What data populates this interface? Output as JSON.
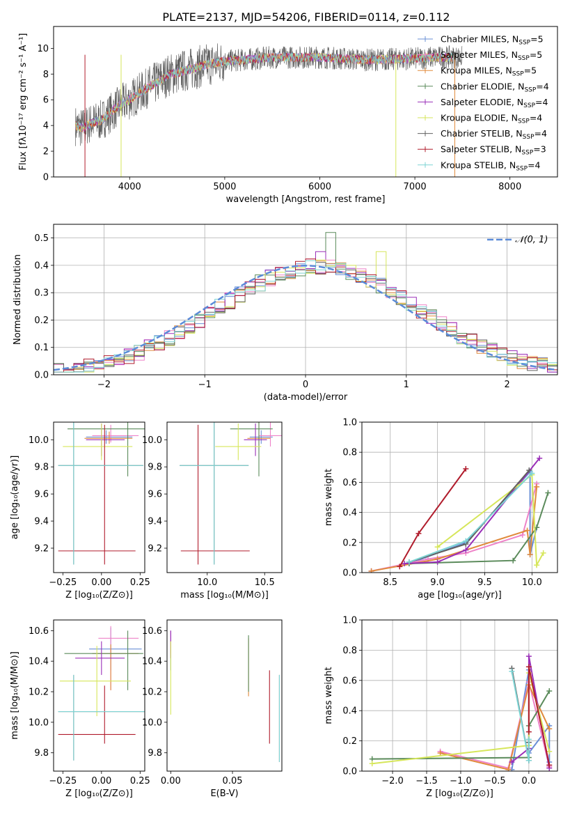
{
  "figure_title": "PLATE=2137, MJD=54206, FIBERID=0114, z=0.112",
  "colors": {
    "Chabrier MILES": "#6a8fd6",
    "Salpeter MILES": "#ee82c8",
    "Kroupa MILES": "#e08a3c",
    "Chabrier ELODIE": "#5a8a5a",
    "Salpeter ELODIE": "#9a2fb8",
    "Kroupa ELODIE": "#d6e65a",
    "Chabrier STELIB": "#606060",
    "Salpeter STELIB": "#b01c2c",
    "Kroupa STELIB": "#7dd4d4",
    "normal": "#5b8bd8"
  },
  "chart_data": [
    {
      "id": "spectrum",
      "type": "line",
      "title": "PLATE=2137, MJD=54206, FIBERID=0114, z=0.112",
      "xlabel": "wavelength [Angstrom, rest frame]",
      "ylabel": "Flux [fλ10⁻¹⁷ erg cm⁻² s⁻¹ A⁻¹]",
      "xlim": [
        3200,
        8500
      ],
      "ylim": [
        0,
        11.7
      ],
      "xticks": [
        4000,
        5000,
        6000,
        7000,
        8000
      ],
      "yticks": [
        0,
        2,
        4,
        6,
        8,
        10
      ],
      "legend": "upper right",
      "legend_entries": [
        {
          "name": "Chabrier MILES",
          "nssp": "5"
        },
        {
          "name": "Salpeter MILES",
          "nssp": "5"
        },
        {
          "name": "Kroupa MILES",
          "nssp": "5"
        },
        {
          "name": "Chabrier ELODIE",
          "nssp": "4"
        },
        {
          "name": "Salpeter ELODIE",
          "nssp": "4"
        },
        {
          "name": "Kroupa ELODIE",
          "nssp": "4"
        },
        {
          "name": "Chabrier STELIB",
          "nssp": "4"
        },
        {
          "name": "Salpeter STELIB",
          "nssp": "3"
        },
        {
          "name": "Kroupa STELIB",
          "nssp": "4"
        }
      ],
      "continuum_x": [
        3430,
        3500,
        3600,
        3700,
        3800,
        3900,
        4000,
        4100,
        4200,
        4300,
        4400,
        4500,
        4600,
        4800,
        5000,
        5200,
        5500,
        6000,
        6500,
        7000,
        7200,
        7500
      ],
      "continuum_y": [
        4.0,
        3.8,
        4.2,
        4.4,
        5.0,
        5.6,
        6.0,
        6.5,
        7.0,
        7.4,
        7.9,
        8.1,
        8.3,
        8.7,
        9.0,
        9.1,
        9.3,
        9.3,
        9.1,
        9.2,
        9.3,
        9.3
      ]
    },
    {
      "id": "residuals",
      "type": "histogram",
      "xlabel": "(data-model)/error",
      "ylabel": "Normed distribution",
      "xlim": [
        -2.5,
        2.5
      ],
      "ylim": [
        0,
        0.55
      ],
      "xticks": [
        -2,
        -1,
        0,
        1,
        2
      ],
      "yticks": [
        0.0,
        0.1,
        0.2,
        0.3,
        0.4,
        0.5
      ],
      "grid": true,
      "legend": "upper right",
      "normal_label": "𝒩(0, 1)",
      "bin_width": 0.1,
      "highlight_bins": [
        {
          "series": "Chabrier ELODIE",
          "x": 0.25,
          "y": 0.52
        },
        {
          "series": "Kroupa ELODIE",
          "x": 0.75,
          "y": 0.45
        },
        {
          "series": "Salpeter ELODIE",
          "x": 0.15,
          "y": 0.45
        }
      ]
    },
    {
      "id": "age_vs_Z",
      "type": "errorbar",
      "xlabel": "Z [log₁₀(Z/Z⊙)]",
      "ylabel": "age  [log₁₀(age/yr)]",
      "xlim": [
        -0.31,
        0.28
      ],
      "ylim": [
        9.02,
        10.13
      ],
      "xticks": [
        -0.25,
        0.0,
        0.25
      ],
      "yticks": [
        9.2,
        9.4,
        9.6,
        9.8,
        10.0
      ],
      "points": [
        {
          "series": "Chabrier MILES",
          "x": 0.03,
          "xerr": [
            0.13,
            0.17
          ],
          "y": 10.02,
          "yerr": [
            0.05,
            0.05
          ]
        },
        {
          "series": "Salpeter MILES",
          "x": 0.06,
          "xerr": [
            0.12,
            0.18
          ],
          "y": 10.03,
          "yerr": [
            0.05,
            0.08
          ]
        },
        {
          "series": "Kroupa MILES",
          "x": 0.05,
          "xerr": [
            0.16,
            0.15
          ],
          "y": 10.01,
          "yerr": [
            0.04,
            0.05
          ]
        },
        {
          "series": "Chabrier ELODIE",
          "x": 0.17,
          "xerr": [
            0.39,
            0.11
          ],
          "y": 10.08,
          "yerr": [
            0.35,
            0.05
          ]
        },
        {
          "series": "Salpeter ELODIE",
          "x": 0.0,
          "xerr": [
            0.1,
            0.15
          ],
          "y": 10.0,
          "yerr": [
            0.12,
            0.12
          ]
        },
        {
          "series": "Kroupa ELODIE",
          "x": 0.0,
          "xerr": [
            0.25,
            0.2
          ],
          "y": 9.95,
          "yerr": [
            0.1,
            0.17
          ]
        },
        {
          "series": "Chabrier STELIB",
          "x": -0.18,
          "xerr": [
            0.1,
            0.45
          ],
          "y": 9.81,
          "yerr": [
            0.73,
            0.33
          ]
        },
        {
          "series": "Salpeter STELIB",
          "x": 0.02,
          "xerr": [
            0.3,
            0.2
          ],
          "y": 9.18,
          "yerr": [
            0.1,
            0.93
          ]
        },
        {
          "series": "Kroupa STELIB",
          "x": -0.18,
          "xerr": [
            0.1,
            0.45
          ],
          "y": 9.81,
          "yerr": [
            0.73,
            0.33
          ]
        }
      ]
    },
    {
      "id": "age_vs_mass",
      "type": "errorbar",
      "xlabel": "mass [log₁₀(M/M⊙)]",
      "ylabel": "",
      "xlim": [
        9.65,
        10.65
      ],
      "ylim": [
        9.02,
        10.13
      ],
      "xticks": [
        10.0,
        10.5
      ],
      "yticks": [
        9.2,
        9.4,
        9.6,
        9.8,
        10.0
      ],
      "points": [
        {
          "series": "Chabrier MILES",
          "x": 10.47,
          "xerr": [
            0.1,
            0.1
          ],
          "y": 10.02,
          "yerr": [
            0.05,
            0.05
          ]
        },
        {
          "series": "Salpeter MILES",
          "x": 10.55,
          "xerr": [
            0.1,
            0.1
          ],
          "y": 10.03,
          "yerr": [
            0.08,
            0.18
          ]
        },
        {
          "series": "Kroupa MILES",
          "x": 10.45,
          "xerr": [
            0.1,
            0.1
          ],
          "y": 10.01,
          "yerr": [
            0.05,
            0.2
          ]
        },
        {
          "series": "Chabrier ELODIE",
          "x": 10.45,
          "xerr": [
            0.25,
            0.12
          ],
          "y": 10.08,
          "yerr": [
            0.35,
            0.05
          ]
        },
        {
          "series": "Salpeter ELODIE",
          "x": 10.42,
          "xerr": [
            0.1,
            0.1
          ],
          "y": 10.0,
          "yerr": [
            0.12,
            0.12
          ]
        },
        {
          "series": "Kroupa ELODIE",
          "x": 10.27,
          "xerr": [
            0.2,
            0.2
          ],
          "y": 9.95,
          "yerr": [
            0.1,
            0.17
          ]
        },
        {
          "series": "Chabrier STELIB",
          "x": 10.06,
          "xerr": [
            0.3,
            0.3
          ],
          "y": 9.81,
          "yerr": [
            0.73,
            0.33
          ]
        },
        {
          "series": "Salpeter STELIB",
          "x": 9.92,
          "xerr": [
            0.15,
            0.45
          ],
          "y": 9.18,
          "yerr": [
            0.1,
            0.93
          ]
        },
        {
          "series": "Kroupa STELIB",
          "x": 10.06,
          "xerr": [
            0.3,
            0.3
          ],
          "y": 9.81,
          "yerr": [
            0.73,
            0.33
          ]
        }
      ]
    },
    {
      "id": "mass_weight_vs_age",
      "type": "line",
      "xlabel": "age  [log₁₀(age/yr)]",
      "ylabel": "mass weight",
      "xlim": [
        8.2,
        10.27
      ],
      "ylim": [
        0,
        1.0
      ],
      "xticks": [
        8.5,
        9.0,
        9.5,
        10.0
      ],
      "yticks": [
        0.0,
        0.2,
        0.4,
        0.6,
        0.8,
        1.0
      ],
      "grid": true,
      "series": [
        {
          "series": "Chabrier MILES",
          "x": [
            8.3,
            8.7,
            9.3,
            9.98,
            9.98,
            10.05
          ],
          "y": [
            0.01,
            0.06,
            0.2,
            0.67,
            0.12,
            0.3
          ]
        },
        {
          "series": "Salpeter MILES",
          "x": [
            8.3,
            8.9,
            9.3,
            9.9,
            10.05
          ],
          "y": [
            0.01,
            0.09,
            0.13,
            0.25,
            0.59
          ]
        },
        {
          "series": "Kroupa MILES",
          "x": [
            8.3,
            9.0,
            9.95,
            9.98,
            10.05
          ],
          "y": [
            0.01,
            0.09,
            0.28,
            0.12,
            0.57
          ]
        },
        {
          "series": "Chabrier ELODIE",
          "x": [
            8.7,
            9.8,
            10.05,
            10.17
          ],
          "y": [
            0.06,
            0.08,
            0.3,
            0.53
          ]
        },
        {
          "series": "Salpeter ELODIE",
          "x": [
            8.65,
            9.0,
            9.3,
            10.08
          ],
          "y": [
            0.06,
            0.07,
            0.15,
            0.76
          ]
        },
        {
          "series": "Kroupa ELODIE",
          "x": [
            9.0,
            10.0,
            10.05,
            10.12
          ],
          "y": [
            0.17,
            0.65,
            0.05,
            0.13
          ]
        },
        {
          "series": "Chabrier STELIB",
          "x": [
            8.7,
            9.3,
            9.97
          ],
          "y": [
            0.07,
            0.19,
            0.68
          ]
        },
        {
          "series": "Salpeter STELIB",
          "x": [
            8.6,
            8.8,
            9.3
          ],
          "y": [
            0.04,
            0.26,
            0.69
          ]
        },
        {
          "series": "Kroupa STELIB",
          "x": [
            8.7,
            9.3,
            10.0
          ],
          "y": [
            0.07,
            0.21,
            0.66
          ]
        }
      ]
    },
    {
      "id": "mass_vs_Z",
      "type": "errorbar",
      "xlabel": "Z [log₁₀(Z/Z⊙)]",
      "ylabel": "mass [log₁₀(M/M⊙)]",
      "xlim": [
        -0.31,
        0.28
      ],
      "ylim": [
        9.68,
        10.67
      ],
      "xticks": [
        -0.25,
        0.0,
        0.25
      ],
      "yticks": [
        9.8,
        10.0,
        10.2,
        10.4,
        10.6
      ],
      "points": [
        {
          "series": "Chabrier MILES",
          "x": 0.06,
          "xerr": [
            0.14,
            0.2
          ],
          "y": 10.48,
          "yerr": [
            0.14,
            0.14
          ]
        },
        {
          "series": "Salpeter MILES",
          "x": 0.06,
          "xerr": [
            0.08,
            0.18
          ],
          "y": 10.55,
          "yerr": [
            0.34,
            0.08
          ]
        },
        {
          "series": "Kroupa MILES",
          "x": 0.06,
          "xerr": [
            0.12,
            0.18
          ],
          "y": 10.45,
          "yerr": [
            0.24,
            0.06
          ]
        },
        {
          "series": "Chabrier ELODIE",
          "x": 0.17,
          "xerr": [
            0.41,
            0.1
          ],
          "y": 10.45,
          "yerr": [
            0.24,
            0.15
          ]
        },
        {
          "series": "Salpeter ELODIE",
          "x": 0.0,
          "xerr": [
            0.17,
            0.15
          ],
          "y": 10.42,
          "yerr": [
            0.11,
            0.11
          ]
        },
        {
          "series": "Kroupa ELODIE",
          "x": -0.03,
          "xerr": [
            0.24,
            0.22
          ],
          "y": 10.27,
          "yerr": [
            0.23,
            0.23
          ]
        },
        {
          "series": "Chabrier STELIB",
          "x": -0.18,
          "xerr": [
            0.1,
            0.46
          ],
          "y": 10.07,
          "yerr": [
            0.32,
            0.24
          ]
        },
        {
          "series": "Salpeter STELIB",
          "x": 0.02,
          "xerr": [
            0.3,
            0.2
          ],
          "y": 9.92,
          "yerr": [
            0.06,
            0.32
          ]
        },
        {
          "series": "Kroupa STELIB",
          "x": -0.18,
          "xerr": [
            0.1,
            0.46
          ],
          "y": 10.07,
          "yerr": [
            0.32,
            0.24
          ]
        }
      ]
    },
    {
      "id": "mass_vs_ebv",
      "type": "errorbar",
      "xlabel": "E(B-V)",
      "ylabel": "",
      "xlim": [
        -0.003,
        0.09
      ],
      "ylim": [
        9.68,
        10.67
      ],
      "xticks": [
        0.0,
        0.05
      ],
      "yticks": [
        9.8,
        10.0,
        10.2,
        10.4,
        10.6
      ],
      "points": [
        {
          "series": "Chabrier MILES",
          "x": 0.0,
          "y": 10.48,
          "yerr": [
            0.14,
            0.12
          ]
        },
        {
          "series": "Salpeter MILES",
          "x": 0.0,
          "y": 10.55,
          "yerr": [
            0.1,
            0.05
          ]
        },
        {
          "series": "Kroupa MILES",
          "x": 0.063,
          "y": 10.45,
          "yerr": [
            0.28,
            0.1
          ]
        },
        {
          "series": "Chabrier ELODIE",
          "x": 0.063,
          "y": 10.45,
          "yerr": [
            0.25,
            0.12
          ]
        },
        {
          "series": "Salpeter ELODIE",
          "x": 0.0,
          "y": 10.52,
          "yerr": [
            0.1,
            0.08
          ]
        },
        {
          "series": "Kroupa ELODIE",
          "x": 0.0,
          "y": 10.3,
          "yerr": [
            0.25,
            0.23
          ]
        },
        {
          "series": "Chabrier STELIB",
          "x": 0.088,
          "y": 10.07,
          "yerr": [
            0.33,
            0.24
          ]
        },
        {
          "series": "Salpeter STELIB",
          "x": 0.08,
          "y": 10.1,
          "yerr": [
            0.24,
            0.24
          ]
        },
        {
          "series": "Kroupa STELIB",
          "x": 0.088,
          "y": 10.07,
          "yerr": [
            0.33,
            0.24
          ]
        }
      ]
    },
    {
      "id": "mass_weight_vs_Z",
      "type": "line",
      "xlabel": "Z [log₁₀(Z/Z⊙)]",
      "ylabel": "mass weight",
      "xlim": [
        -2.45,
        0.42
      ],
      "ylim": [
        0,
        1.0
      ],
      "xticks": [
        -2.0,
        -1.5,
        -1.0,
        -0.5,
        0.0
      ],
      "yticks": [
        0.0,
        0.2,
        0.4,
        0.6,
        0.8,
        1.0
      ],
      "grid": true,
      "series": [
        {
          "series": "Chabrier MILES",
          "x": [
            -0.25,
            0.0,
            0.0,
            0.3,
            0.3
          ],
          "y": [
            0.01,
            0.67,
            0.12,
            0.3,
            0.06
          ]
        },
        {
          "series": "Salpeter MILES",
          "x": [
            -1.3,
            -0.3,
            0.0,
            0.3
          ],
          "y": [
            0.13,
            0.02,
            0.59,
            0.03
          ]
        },
        {
          "series": "Kroupa MILES",
          "x": [
            -1.3,
            -0.3,
            0.0,
            0.3
          ],
          "y": [
            0.12,
            0.01,
            0.57,
            0.28
          ]
        },
        {
          "series": "Chabrier ELODIE",
          "x": [
            -2.3,
            0.0,
            0.0,
            0.3
          ],
          "y": [
            0.08,
            0.09,
            0.3,
            0.53
          ]
        },
        {
          "series": "Salpeter ELODIE",
          "x": [
            -0.25,
            0.0,
            0.0,
            0.3
          ],
          "y": [
            0.06,
            0.15,
            0.76,
            0.02
          ]
        },
        {
          "series": "Kroupa ELODIE",
          "x": [
            -2.3,
            0.0,
            0.0,
            0.3
          ],
          "y": [
            0.05,
            0.17,
            0.65,
            0.13
          ]
        },
        {
          "series": "Chabrier STELIB",
          "x": [
            -0.25,
            0.0,
            0.0
          ],
          "y": [
            0.68,
            0.07,
            0.19
          ]
        },
        {
          "series": "Salpeter STELIB",
          "x": [
            0.0,
            0.0,
            0.3
          ],
          "y": [
            0.26,
            0.69,
            0.04
          ]
        },
        {
          "series": "Kroupa STELIB",
          "x": [
            -0.25,
            0.0,
            0.0
          ],
          "y": [
            0.66,
            0.07,
            0.21
          ]
        }
      ]
    }
  ]
}
